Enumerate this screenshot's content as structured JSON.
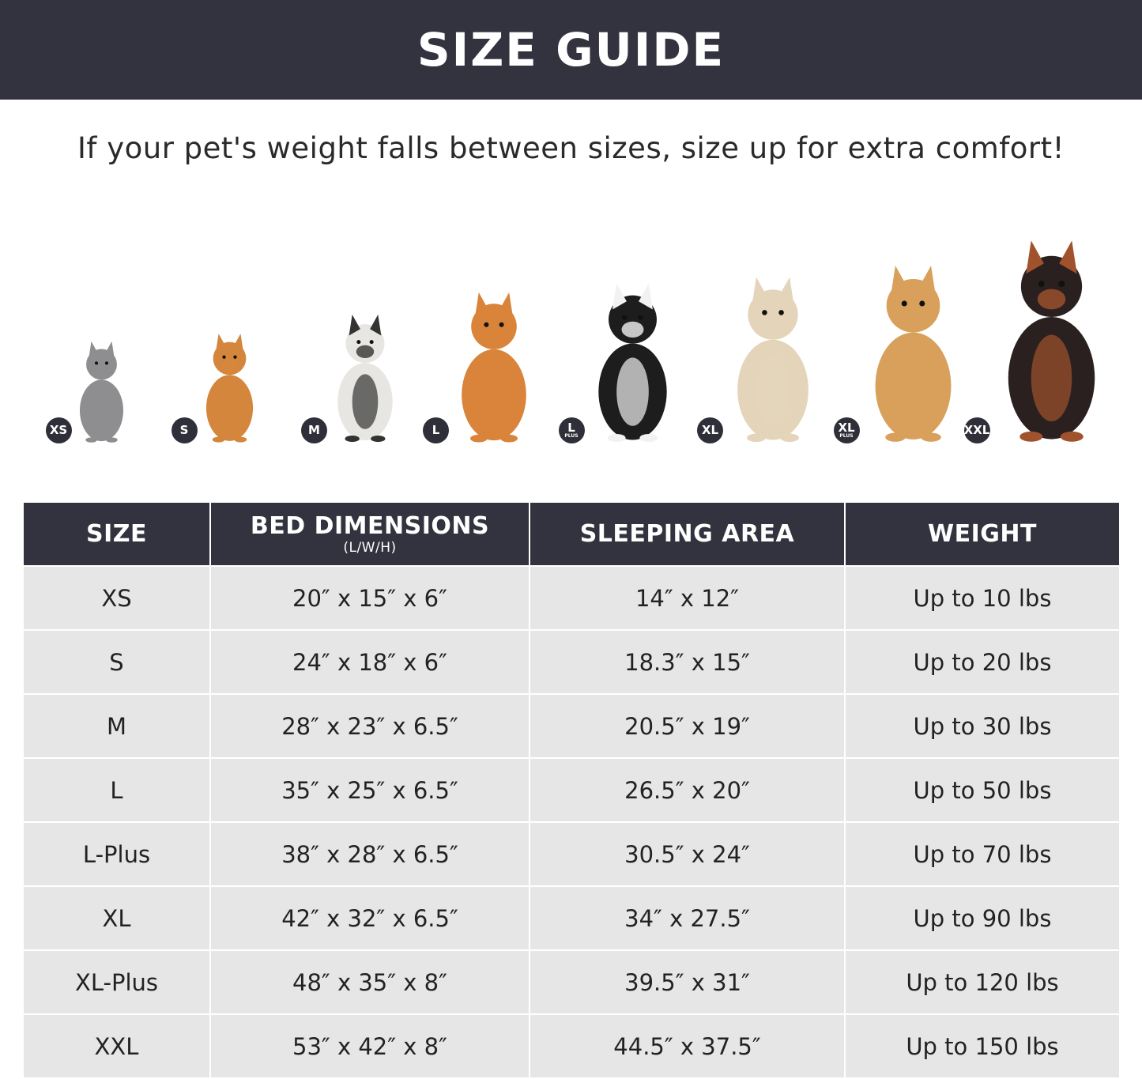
{
  "header": {
    "title": "SIZE GUIDE"
  },
  "subtitle": "If your pet's weight falls between sizes, size up for extra comfort!",
  "pets": [
    {
      "badge": "XS",
      "badge_sub": "",
      "animal": "cat",
      "color": "#8e8d90"
    },
    {
      "badge": "S",
      "badge_sub": "",
      "animal": "pomeranian",
      "color": "#d4873c"
    },
    {
      "badge": "M",
      "badge_sub": "",
      "animal": "french-bulldog",
      "color": "#e8e6e2"
    },
    {
      "badge": "L",
      "badge_sub": "",
      "animal": "shiba-inu",
      "color": "#d9843a"
    },
    {
      "badge": "L",
      "badge_sub": "PLUS",
      "animal": "border-collie",
      "color": "#1d1d1d"
    },
    {
      "badge": "XL",
      "badge_sub": "",
      "animal": "labrador",
      "color": "#e4d5ba"
    },
    {
      "badge": "XL",
      "badge_sub": "PLUS",
      "animal": "golden-retriever",
      "color": "#d8a05a"
    },
    {
      "badge": "XXL",
      "badge_sub": "",
      "animal": "doberman",
      "color": "#2a2020"
    }
  ],
  "table": {
    "headers": [
      {
        "label": "SIZE",
        "unit": ""
      },
      {
        "label": "BED DIMENSIONS",
        "unit": "(L/W/H)"
      },
      {
        "label": "SLEEPING AREA",
        "unit": ""
      },
      {
        "label": "WEIGHT",
        "unit": ""
      }
    ],
    "rows": [
      [
        "XS",
        "20″ x 15″ x 6″",
        "14″ x 12″",
        "Up to 10 lbs"
      ],
      [
        "S",
        "24″ x 18″ x 6″",
        "18.3″ x 15″",
        "Up to 20 lbs"
      ],
      [
        "M",
        "28″ x 23″ x 6.5″",
        "20.5″ x 19″",
        "Up to 30 lbs"
      ],
      [
        "L",
        "35″ x 25″ x 6.5″",
        "26.5″ x 20″",
        "Up to 50 lbs"
      ],
      [
        "L-Plus",
        "38″ x 28″ x 6.5″",
        "30.5″ x 24″",
        "Up to 70 lbs"
      ],
      [
        "XL",
        "42″ x 32″ x 6.5″",
        "34″ x 27.5″",
        "Up to 90 lbs"
      ],
      [
        "XL-Plus",
        "48″ x 35″ x 8″",
        "39.5″ x 31″",
        "Up to 120 lbs"
      ],
      [
        "XXL",
        "53″ x 42″ x 8″",
        "44.5″ x 37.5″",
        "Up to 150 lbs"
      ]
    ]
  }
}
